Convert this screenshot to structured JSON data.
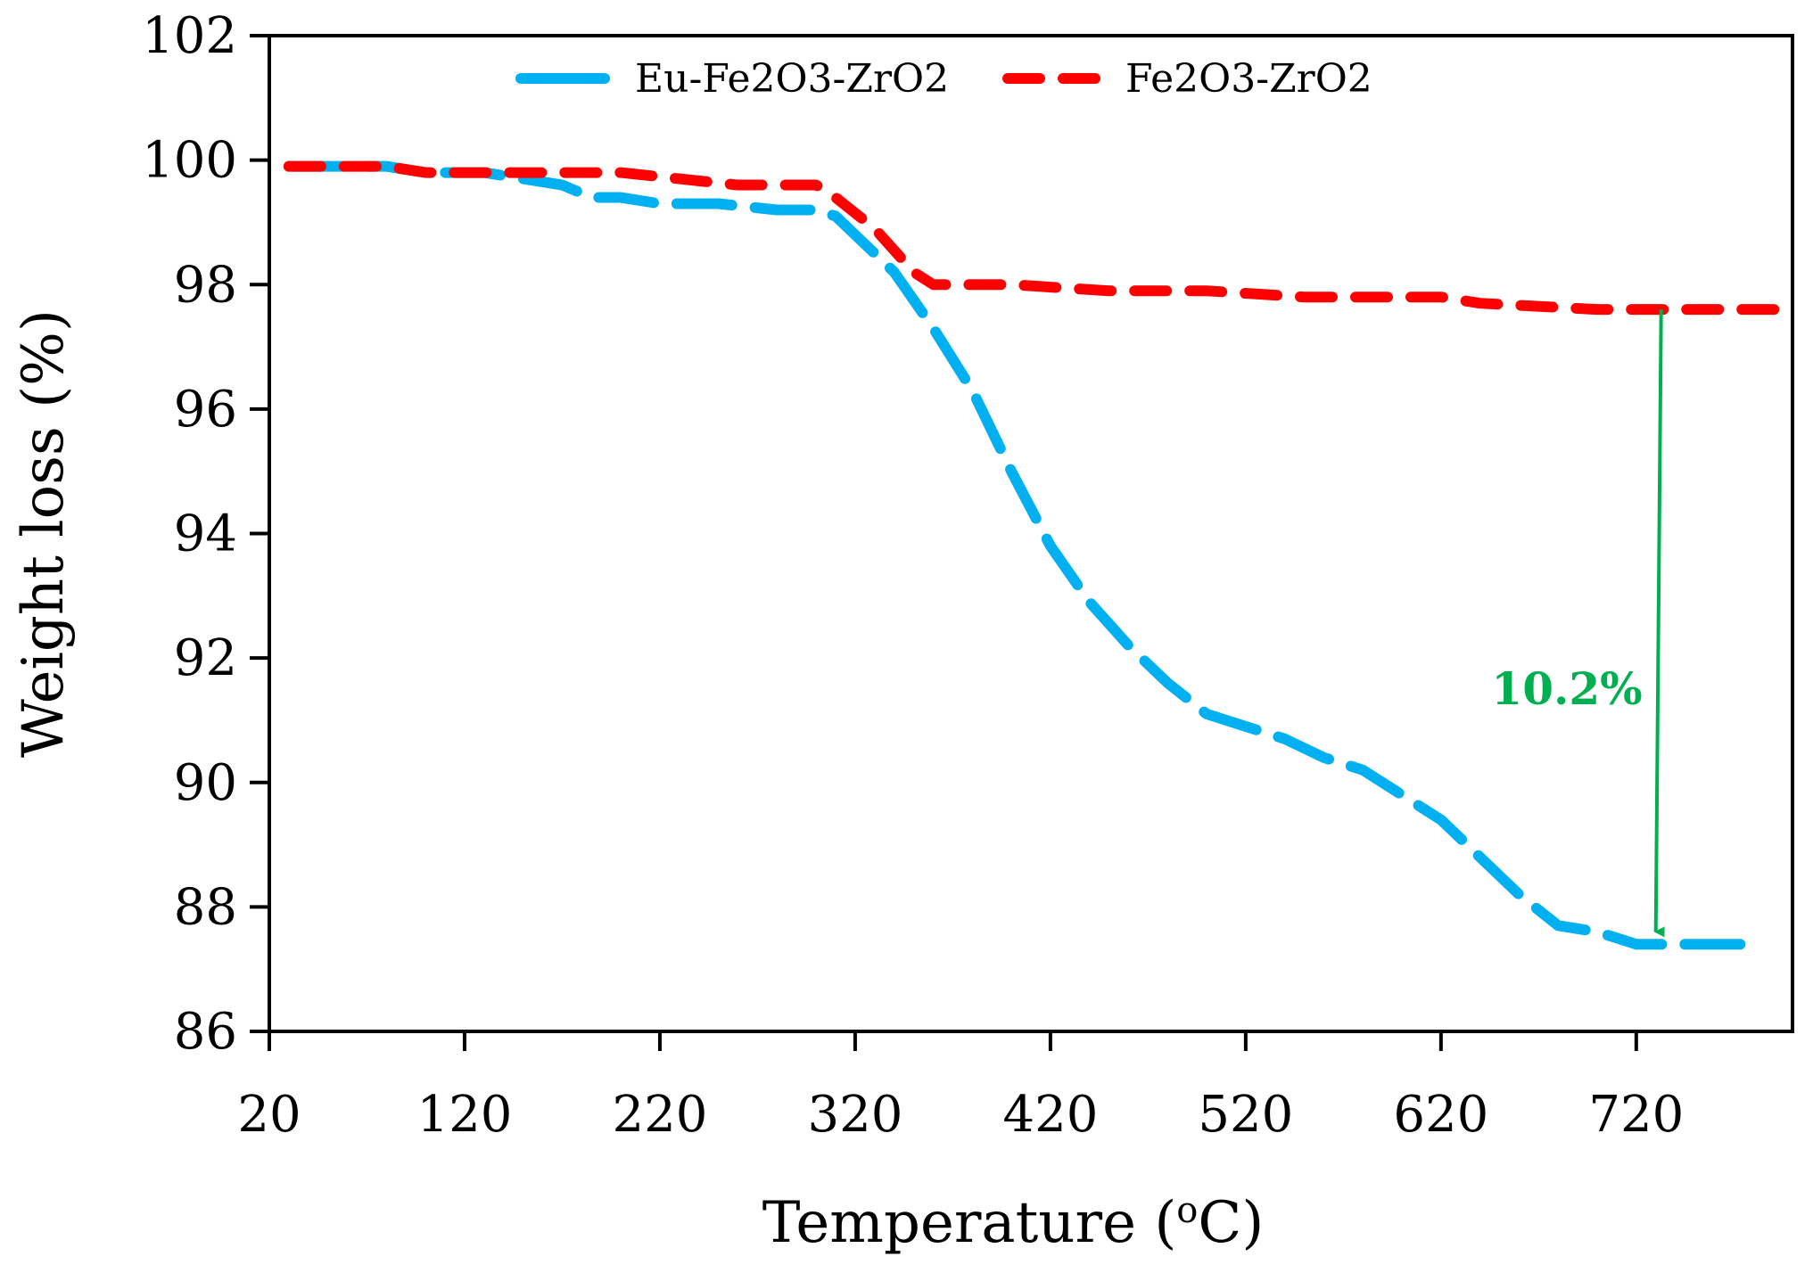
{
  "chart_data": {
    "type": "line",
    "title": "",
    "xlabel": "Temperature (",
    "xlabel_sup": "o",
    "xlabel_end": "C)",
    "ylabel": "Weight loss (%)",
    "xlim": [
      20,
      800
    ],
    "ylim": [
      86,
      102
    ],
    "xticks": [
      20,
      120,
      220,
      320,
      420,
      520,
      620,
      720
    ],
    "yticks": [
      86,
      88,
      90,
      92,
      94,
      96,
      98,
      100,
      102
    ],
    "legend_position": "top",
    "series": [
      {
        "name": "Eu-Fe2O3-ZrO2",
        "color": "#00b0f0",
        "dash": "dashed",
        "x": [
          30,
          50,
          80,
          100,
          130,
          150,
          170,
          185,
          200,
          220,
          250,
          280,
          300,
          310,
          320,
          340,
          360,
          380,
          400,
          420,
          440,
          460,
          480,
          500,
          520,
          540,
          560,
          580,
          600,
          620,
          640,
          660,
          680,
          700,
          720,
          780
        ],
        "y": [
          99.9,
          99.9,
          99.9,
          99.8,
          99.8,
          99.7,
          99.6,
          99.4,
          99.4,
          99.3,
          99.3,
          99.2,
          99.2,
          99.1,
          98.8,
          98.2,
          97.3,
          96.3,
          95.0,
          93.8,
          92.9,
          92.2,
          91.6,
          91.1,
          90.9,
          90.7,
          90.4,
          90.2,
          89.8,
          89.4,
          88.8,
          88.2,
          87.7,
          87.6,
          87.4,
          87.4
        ]
      },
      {
        "name": "Fe2O3-ZrO2",
        "color": "#ff0000",
        "dash": "dashed",
        "x": [
          30,
          80,
          100,
          200,
          230,
          260,
          300,
          310,
          330,
          350,
          360,
          400,
          450,
          500,
          550,
          600,
          620,
          640,
          700,
          800
        ],
        "y": [
          99.9,
          99.9,
          99.8,
          99.8,
          99.7,
          99.6,
          99.6,
          99.4,
          98.9,
          98.2,
          98.0,
          98.0,
          97.9,
          97.9,
          97.8,
          97.8,
          97.8,
          97.7,
          97.6,
          97.6
        ]
      }
    ],
    "annotation": {
      "text": "10.2%",
      "color": "#00b050",
      "x": 730,
      "y_from": 97.6,
      "y_to": 87.4
    }
  }
}
